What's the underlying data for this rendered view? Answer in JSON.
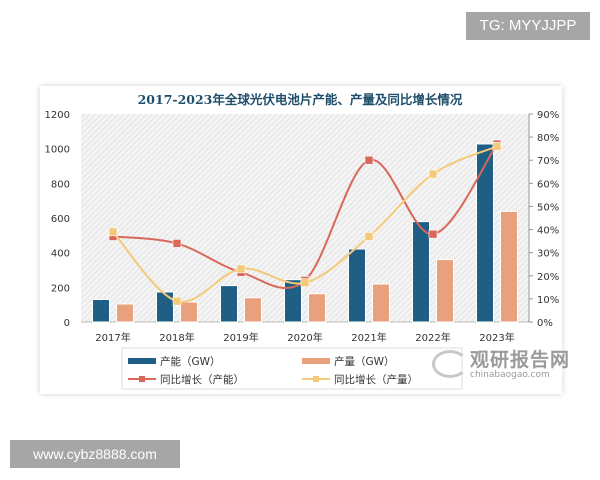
{
  "watermarks": {
    "top": "TG: MYYJJPP",
    "bottom": "www.cybz8888.com",
    "brand_cn": "观研报告网",
    "brand_en": "chinabaogao.com"
  },
  "chart_data": {
    "type": "bar",
    "title": "2017-2023年全球光伏电池片产能、产量及同比增长情况",
    "categories": [
      "2017年",
      "2018年",
      "2019年",
      "2020年",
      "2021年",
      "2022年",
      "2023年"
    ],
    "y_left": {
      "range": [
        0,
        1200
      ],
      "ticks": [
        "0",
        "200",
        "400",
        "600",
        "800",
        "1000",
        "1200"
      ]
    },
    "y_right": {
      "range": [
        0,
        90
      ],
      "ticks": [
        "0%",
        "10%",
        "20%",
        "30%",
        "40%",
        "50%",
        "60%",
        "70%",
        "80%",
        "90%"
      ]
    },
    "legend_position": "bottom",
    "series": [
      {
        "name": "产能（GW）",
        "type": "bar",
        "axis": "left",
        "color": "#1f5f85",
        "values": [
          130,
          173,
          210,
          244,
          421,
          579,
          1027
        ]
      },
      {
        "name": "产量（GW）",
        "type": "bar",
        "axis": "left",
        "color": "#e9a07c",
        "values": [
          104,
          115,
          140,
          163,
          219,
          360,
          638
        ]
      },
      {
        "name": "同比增长（产能）",
        "type": "line",
        "axis": "right",
        "color": "#d9675a",
        "values": [
          37,
          34,
          21.5,
          18,
          70,
          38,
          77
        ]
      },
      {
        "name": "同比增长（产量）",
        "type": "line",
        "axis": "right",
        "color": "#f5c97a",
        "values": [
          39,
          9,
          23,
          17,
          37,
          64,
          76
        ]
      }
    ]
  }
}
